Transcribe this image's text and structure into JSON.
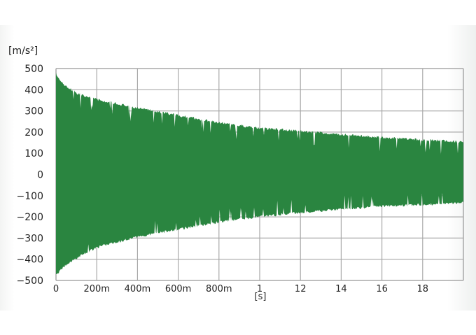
{
  "chart_data": {
    "type": "area",
    "title": "",
    "ylabel": "[m/s²]",
    "xlabel": "[s]",
    "ylim": [
      -500,
      500
    ],
    "yticks": [
      "500",
      "400",
      "300",
      "200",
      "100",
      "0",
      "−100",
      "−200",
      "−300",
      "−400",
      "−500"
    ],
    "xticks": [
      "0",
      "200m",
      "400m",
      "600m",
      "800m",
      "1",
      "12",
      "14",
      "16",
      "18"
    ],
    "grid": true,
    "x_divisions": 10,
    "y_divisions": 10,
    "series_color": "#2a8540",
    "grid_color": "#a8a8a8",
    "envelope": {
      "x_tick_index": [
        0,
        0.2,
        0.5,
        1,
        2,
        3,
        4,
        5,
        6,
        7,
        8,
        9,
        10
      ],
      "upper": [
        480,
        430,
        390,
        360,
        320,
        285,
        250,
        225,
        210,
        195,
        180,
        170,
        160
      ],
      "lower": [
        -480,
        -440,
        -400,
        -350,
        -300,
        -265,
        -230,
        -205,
        -185,
        -170,
        -155,
        -148,
        -140
      ]
    }
  }
}
